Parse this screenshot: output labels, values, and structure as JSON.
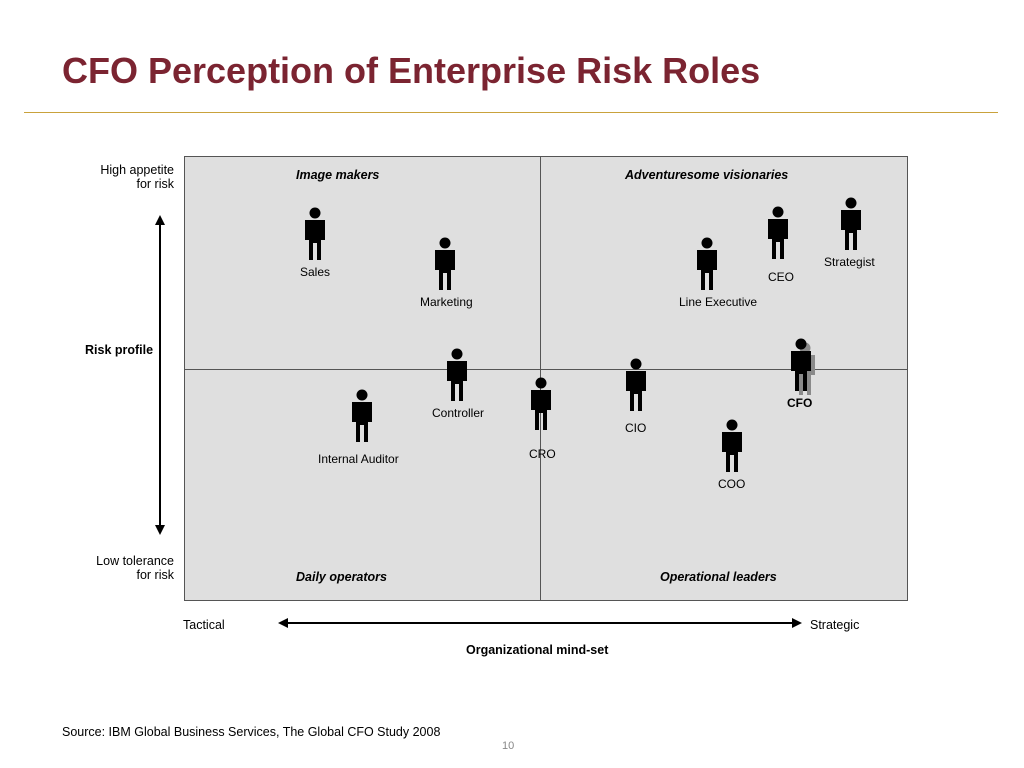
{
  "title": "CFO Perception of Enterprise Risk Roles",
  "y_axis": {
    "top_label": [
      "High appetite",
      "for risk"
    ],
    "bottom_label": [
      "Low tolerance",
      "for risk"
    ],
    "title": "Risk profile"
  },
  "x_axis": {
    "left_label": "Tactical",
    "right_label": "Strategic",
    "title": "Organizational mind-set"
  },
  "quadrants": {
    "top_left": "Image makers",
    "top_right": "Adventuresome visionaries",
    "bottom_left": "Daily operators",
    "bottom_right": "Operational leaders"
  },
  "roles": [
    {
      "name": "Sales"
    },
    {
      "name": "Marketing"
    },
    {
      "name": "Line Executive"
    },
    {
      "name": "CEO"
    },
    {
      "name": "Strategist"
    },
    {
      "name": "CFO",
      "highlighted": true
    },
    {
      "name": "Controller"
    },
    {
      "name": "Internal Auditor"
    },
    {
      "name": "CRO"
    },
    {
      "name": "CIO"
    },
    {
      "name": "COO"
    }
  ],
  "source": "Source:  IBM Global Business Services, The Global CFO Study 2008",
  "page_number": "10",
  "colors": {
    "title": "#7b2431",
    "title_rule": "#c9a23c",
    "grid_fill": "#dfdfdf"
  }
}
